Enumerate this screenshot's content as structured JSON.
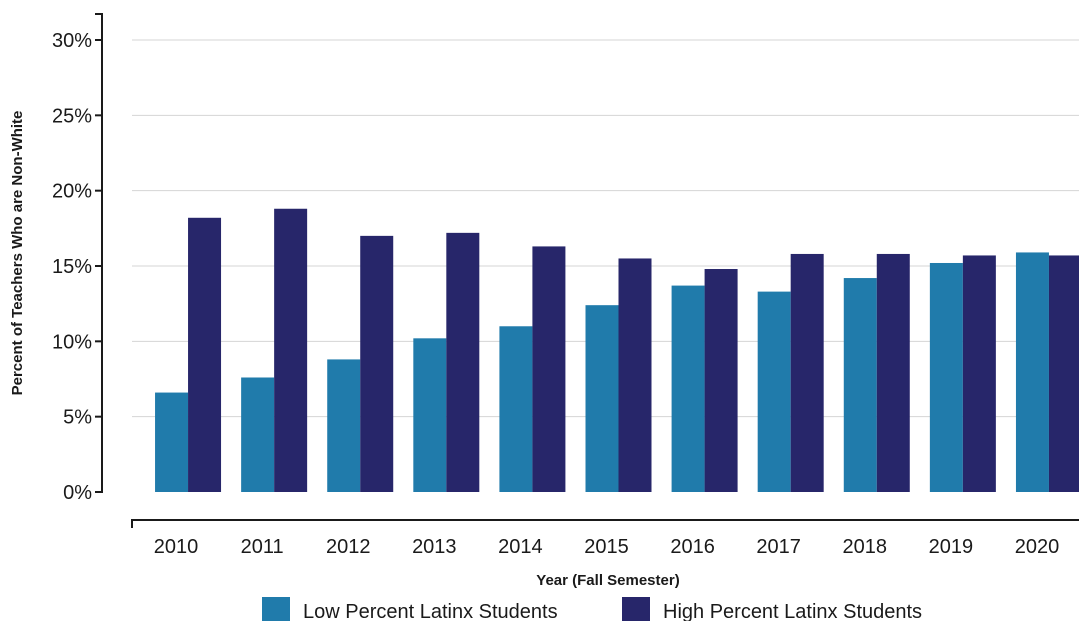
{
  "chart_data": {
    "type": "bar",
    "xlabel": "Year (Fall Semester)",
    "ylabel": "Percent of Teachers Who are Non-White",
    "categories": [
      "2010",
      "2011",
      "2012",
      "2013",
      "2014",
      "2015",
      "2016",
      "2017",
      "2018",
      "2019",
      "2020"
    ],
    "series": [
      {
        "name": "Low Percent Latinx Students",
        "color": "#207bab",
        "values": [
          6.6,
          7.6,
          8.8,
          10.2,
          11.0,
          12.4,
          13.7,
          13.3,
          14.2,
          15.2,
          15.9
        ]
      },
      {
        "name": "High Percent Latinx Students",
        "color": "#27266a",
        "values": [
          18.2,
          18.8,
          17.0,
          17.2,
          16.3,
          15.5,
          14.8,
          15.8,
          15.8,
          15.7,
          15.7
        ]
      }
    ],
    "ylim": [
      0,
      30
    ],
    "yticks": [
      0,
      5,
      10,
      15,
      20,
      25,
      30
    ],
    "ytick_labels": [
      "0%",
      "5%",
      "10%",
      "15%",
      "20%",
      "25%",
      "30%"
    ],
    "grid": true,
    "legend_position": "bottom"
  }
}
